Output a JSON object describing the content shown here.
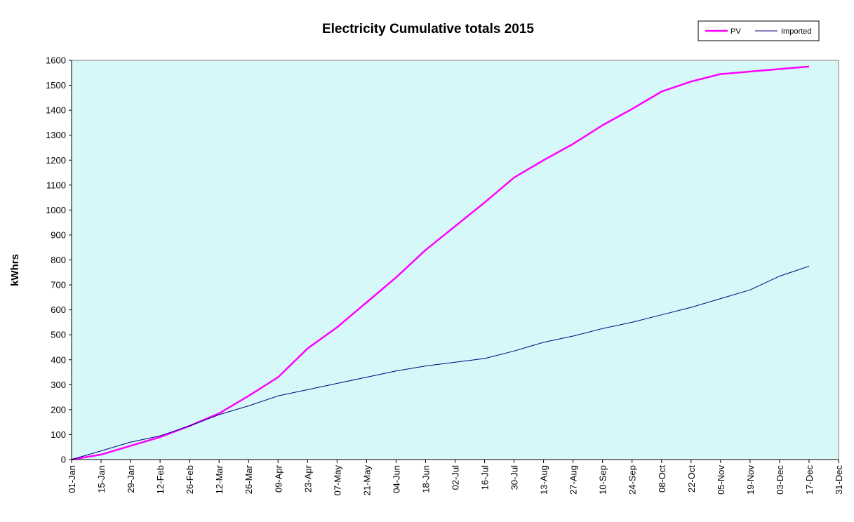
{
  "chart_data": {
    "type": "line",
    "title": "Electricity Cumulative totals 2015",
    "xlabel": "",
    "ylabel": "kWhrs",
    "ylim": [
      0,
      1600
    ],
    "yticks": [
      0,
      100,
      200,
      300,
      400,
      500,
      600,
      700,
      800,
      900,
      1000,
      1100,
      1200,
      1300,
      1400,
      1500,
      1600
    ],
    "xticks": [
      "01-Jan",
      "15-Jan",
      "29-Jan",
      "12-Feb",
      "26-Feb",
      "12-Mar",
      "26-Mar",
      "09-Apr",
      "23-Apr",
      "07-May",
      "21-May",
      "04-Jun",
      "18-Jun",
      "02-Jul",
      "16-Jul",
      "30-Jul",
      "13-Aug",
      "27-Aug",
      "10-Sep",
      "24-Sep",
      "08-Oct",
      "22-Oct",
      "05-Nov",
      "19-Nov",
      "03-Dec",
      "17-Dec",
      "31-Dec"
    ],
    "xlim": [
      "01-Jan",
      "31-Dec"
    ],
    "grid": false,
    "legend_position": "top-right",
    "background_color": "#D7F8F8",
    "x": [
      "01-Jan",
      "15-Jan",
      "29-Jan",
      "12-Feb",
      "26-Feb",
      "12-Mar",
      "26-Mar",
      "09-Apr",
      "23-Apr",
      "07-May",
      "21-May",
      "04-Jun",
      "18-Jun",
      "02-Jul",
      "16-Jul",
      "30-Jul",
      "13-Aug",
      "27-Aug",
      "10-Sep",
      "24-Sep",
      "08-Oct",
      "22-Oct",
      "05-Nov",
      "19-Nov",
      "03-Dec",
      "17-Dec"
    ],
    "series": [
      {
        "name": "PV",
        "color": "#FF00FF",
        "values": [
          0,
          20,
          55,
          90,
          135,
          185,
          255,
          330,
          445,
          530,
          630,
          730,
          840,
          935,
          1030,
          1130,
          1200,
          1265,
          1340,
          1405,
          1475,
          1515,
          1545,
          1555,
          1565,
          1575
        ]
      },
      {
        "name": "Imported",
        "color": "#000080",
        "values": [
          0,
          35,
          70,
          95,
          135,
          180,
          215,
          255,
          280,
          305,
          330,
          355,
          375,
          390,
          405,
          435,
          470,
          495,
          525,
          550,
          580,
          610,
          645,
          680,
          735,
          775
        ]
      }
    ]
  }
}
